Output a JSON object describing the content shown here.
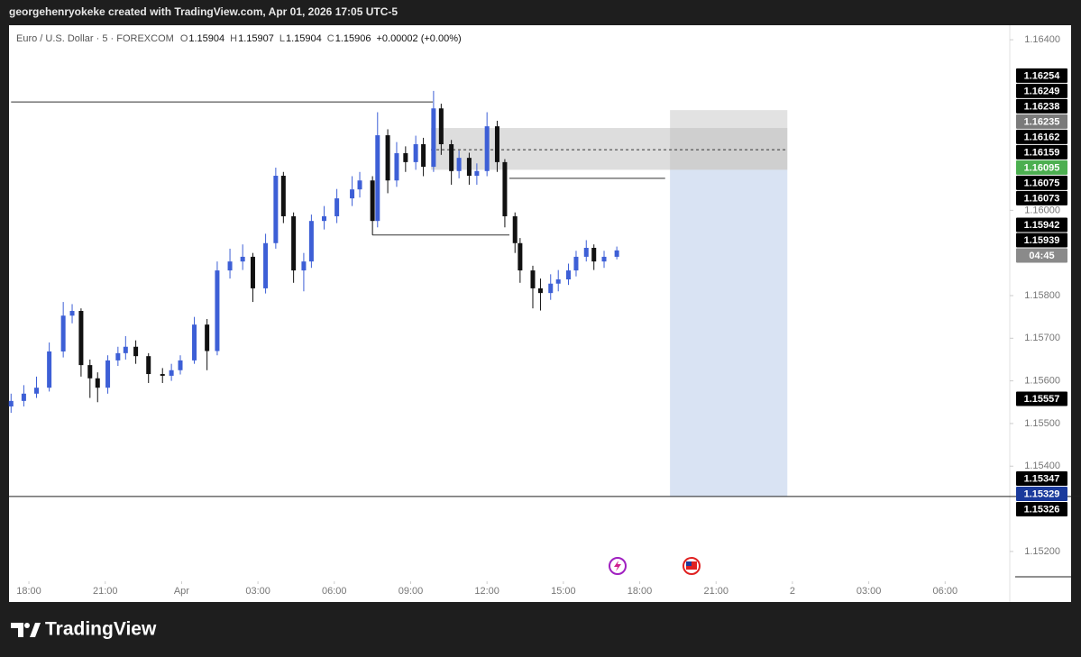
{
  "header": {
    "attribution": "georgehenryokeke created with TradingView.com, Apr 01, 2026 17:05 UTC-5",
    "brand": "TradingView"
  },
  "chart_data": {
    "type": "candlestick",
    "symbol": "Euro / U.S. Dollar · 5 · FOREXCOM",
    "legend_ohlc": [
      {
        "label": "O",
        "value": 1.15904
      },
      {
        "label": "H",
        "value": 1.15907
      },
      {
        "label": "L",
        "value": 1.15904
      },
      {
        "label": "C",
        "value": 1.15906
      }
    ],
    "change": "+0.00002 (+0.00%)",
    "up_color": "#3d5fd6",
    "down_color": "#111111",
    "xlim": [
      -0.71,
      38.54
    ],
    "ylim": [
      1.1513,
      1.16434
    ],
    "xticks": [
      {
        "value": 0,
        "label": "18:00"
      },
      {
        "value": 3,
        "label": "21:00"
      },
      {
        "value": 6,
        "label": "Apr"
      },
      {
        "value": 9,
        "label": "03:00"
      },
      {
        "value": 12,
        "label": "06:00"
      },
      {
        "value": 15,
        "label": "09:00"
      },
      {
        "value": 18,
        "label": "12:00"
      },
      {
        "value": 21,
        "label": "15:00"
      },
      {
        "value": 24,
        "label": "18:00"
      },
      {
        "value": 27,
        "label": "21:00"
      },
      {
        "value": 30,
        "label": "2"
      },
      {
        "value": 33,
        "label": "03:00"
      },
      {
        "value": 36,
        "label": "06:00"
      }
    ],
    "yticks": [
      {
        "value": 1.164,
        "label": "1.16400"
      },
      {
        "value": 1.16,
        "label": "1.16000"
      },
      {
        "value": 1.158,
        "label": "1.15800"
      },
      {
        "value": 1.157,
        "label": "1.15700"
      },
      {
        "value": 1.156,
        "label": "1.15600"
      },
      {
        "value": 1.155,
        "label": "1.15500"
      },
      {
        "value": 1.154,
        "label": "1.15400"
      },
      {
        "value": 1.152,
        "label": "1.15200"
      }
    ],
    "x": [
      -0.7,
      -0.2,
      0.3,
      0.8,
      1.35,
      1.7,
      2.05,
      2.4,
      2.7,
      3.1,
      3.5,
      3.8,
      4.2,
      4.7,
      5.25,
      5.6,
      5.95,
      6.5,
      7.0,
      7.4,
      7.9,
      8.4,
      8.8,
      9.3,
      9.7,
      10.0,
      10.4,
      10.8,
      11.1,
      11.6,
      12.1,
      12.7,
      13.0,
      13.5,
      13.7,
      14.1,
      14.45,
      14.8,
      15.2,
      15.5,
      15.9,
      16.2,
      16.6,
      16.9,
      17.3,
      17.6,
      18.0,
      18.4,
      18.7,
      19.1,
      19.3,
      19.8,
      20.1,
      20.5,
      20.8,
      21.2,
      21.5,
      21.9,
      22.2,
      22.6,
      23.1
    ],
    "open": [
      1.1554,
      1.15553,
      1.1557,
      1.15584,
      1.15669,
      1.15753,
      1.15764,
      1.15637,
      1.15606,
      1.15584,
      1.15648,
      1.15665,
      1.1568,
      1.15658,
      1.15616,
      1.15612,
      1.15625,
      1.15648,
      1.15732,
      1.1567,
      1.15859,
      1.1588,
      1.15891,
      1.15817,
      1.15923,
      1.16081,
      1.15986,
      1.15859,
      1.1588,
      1.15975,
      1.15986,
      1.16028,
      1.16049,
      1.1607,
      1.15975,
      1.16176,
      1.1607,
      1.16134,
      1.16113,
      1.16155,
      1.16102,
      1.16239,
      1.16155,
      1.16092,
      1.16123,
      1.16081,
      1.16092,
      1.16197,
      1.16113,
      1.15986,
      1.15923,
      1.15859,
      1.15817,
      1.15806,
      1.15828,
      1.15838,
      1.15859,
      1.15891,
      1.15912,
      1.1588,
      1.15891
    ],
    "high": [
      1.1557,
      1.1559,
      1.1561,
      1.1569,
      1.15785,
      1.1578,
      1.1577,
      1.1565,
      1.1562,
      1.1566,
      1.1568,
      1.15705,
      1.15695,
      1.15665,
      1.1563,
      1.1564,
      1.1566,
      1.1575,
      1.15745,
      1.1588,
      1.1591,
      1.1592,
      1.159,
      1.15945,
      1.161,
      1.1609,
      1.15995,
      1.159,
      1.1599,
      1.1601,
      1.1605,
      1.1608,
      1.1609,
      1.1608,
      1.1623,
      1.1619,
      1.1616,
      1.1615,
      1.16175,
      1.1617,
      1.1628,
      1.1625,
      1.16165,
      1.1614,
      1.16135,
      1.1611,
      1.1623,
      1.1621,
      1.1612,
      1.15995,
      1.15935,
      1.1587,
      1.1584,
      1.1585,
      1.1586,
      1.15875,
      1.15905,
      1.1593,
      1.1592,
      1.15905,
      1.15915
    ],
    "low": [
      1.15525,
      1.1554,
      1.1556,
      1.15575,
      1.15655,
      1.15735,
      1.1561,
      1.1556,
      1.1555,
      1.1557,
      1.15635,
      1.1565,
      1.1564,
      1.15595,
      1.15595,
      1.156,
      1.15615,
      1.1564,
      1.15625,
      1.1566,
      1.1584,
      1.1586,
      1.15785,
      1.15805,
      1.1591,
      1.1597,
      1.1583,
      1.1581,
      1.15865,
      1.15955,
      1.1597,
      1.1601,
      1.1603,
      1.15942,
      1.1596,
      1.1604,
      1.16055,
      1.1609,
      1.16095,
      1.1608,
      1.1609,
      1.1613,
      1.1606,
      1.16075,
      1.1606,
      1.1606,
      1.1608,
      1.1609,
      1.1596,
      1.159,
      1.1583,
      1.1577,
      1.15765,
      1.1579,
      1.1581,
      1.15825,
      1.15845,
      1.1588,
      1.1586,
      1.15865,
      1.15885
    ],
    "close": [
      1.15553,
      1.1557,
      1.15584,
      1.15669,
      1.15753,
      1.15764,
      1.15637,
      1.15606,
      1.15584,
      1.15648,
      1.15665,
      1.1568,
      1.15658,
      1.15616,
      1.15612,
      1.15625,
      1.15648,
      1.15732,
      1.1567,
      1.15859,
      1.1588,
      1.15891,
      1.15817,
      1.15923,
      1.16081,
      1.15986,
      1.15859,
      1.1588,
      1.15975,
      1.15986,
      1.16028,
      1.16049,
      1.1607,
      1.15975,
      1.16176,
      1.1607,
      1.16134,
      1.16113,
      1.16155,
      1.16102,
      1.16239,
      1.16155,
      1.16092,
      1.16123,
      1.16081,
      1.16092,
      1.16197,
      1.16113,
      1.15986,
      1.15923,
      1.15859,
      1.15817,
      1.15806,
      1.15828,
      1.15838,
      1.15859,
      1.15891,
      1.15912,
      1.1588,
      1.15891,
      1.15906
    ],
    "zones": [
      {
        "x": [
          15.8,
          29.8
        ],
        "price": [
          1.16193,
          1.16095
        ],
        "color": "rgba(170,170,170,0.4)"
      },
      {
        "x": [
          25.19,
          29.8
        ],
        "price": [
          1.16235,
          1.16095
        ],
        "color": "rgba(190,190,190,0.45)"
      },
      {
        "x": [
          25.19,
          29.8
        ],
        "price": [
          1.16095,
          1.15329
        ],
        "color": "rgba(160,185,225,0.4)"
      }
    ],
    "lines": [
      {
        "x": [
          -0.7,
          15.87
        ],
        "price": 1.16254
      },
      {
        "x": [
          13.5,
          18.88
        ],
        "price": 1.15942
      },
      {
        "x": [
          18.88,
          25.0
        ],
        "price": 1.16075
      },
      {
        "x": [
          15.8,
          29.8
        ],
        "price": 1.16142,
        "dashed": true
      }
    ],
    "horizontal_ray": 1.15329,
    "price_labels": [
      {
        "price": 1.16254,
        "color": "#000000"
      },
      {
        "price": 1.16249,
        "color": "#000000"
      },
      {
        "price": 1.16238,
        "color": "#000000"
      },
      {
        "price": 1.16235,
        "color": "#7a7a7a"
      },
      {
        "price": 1.16162,
        "color": "#000000"
      },
      {
        "price": 1.16159,
        "color": "#000000"
      },
      {
        "price": 1.16095,
        "color": "#4caf50"
      },
      {
        "price": 1.16075,
        "color": "#000000"
      },
      {
        "price": 1.16073,
        "color": "#000000"
      },
      {
        "price": 1.15942,
        "color": "#000000"
      },
      {
        "price": 1.15939,
        "color": "#000000"
      },
      {
        "price": 1.15557,
        "color": "#000000"
      },
      {
        "price": 1.15347,
        "color": "#000000"
      },
      {
        "price": 1.15329,
        "color": "#1a3a9c"
      },
      {
        "price": 1.15326,
        "color": "#000000"
      }
    ],
    "countdown": "04:45"
  }
}
